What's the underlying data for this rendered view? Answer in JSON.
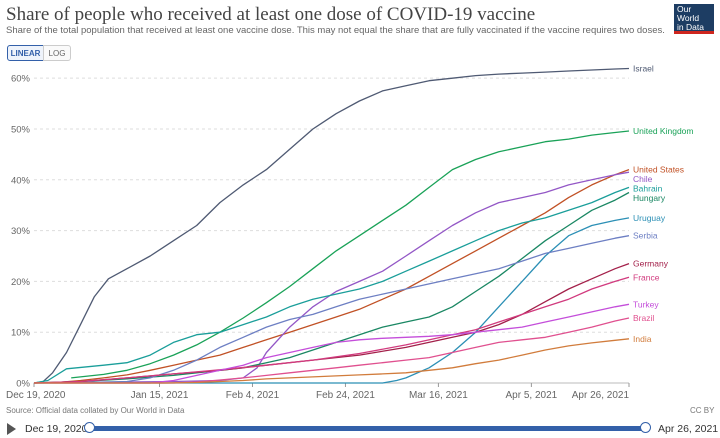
{
  "header": {
    "title": "Share of people who received at least one dose of COVID-19 vaccine",
    "subtitle": "Share of the total population that received at least one vaccine dose. This may not equal the share that are fully vaccinated if the vaccine requires two doses.",
    "logo_line1": "Our World",
    "logo_line2": "in Data"
  },
  "controls": {
    "linear_label": "LINEAR",
    "log_label": "LOG"
  },
  "footer": {
    "source": "Source: Official data collated by Our World in Data",
    "license": "CC BY"
  },
  "timeline": {
    "start_label": "Dec 19, 2020",
    "end_label": "Apr 26, 2021"
  },
  "chart_data": {
    "type": "line",
    "title": "Share of people who received at least one dose of COVID-19 vaccine",
    "subtitle": "Share of the total population that received at least one vaccine dose. This may not equal the share that are fully vaccinated if the vaccine requires two doses.",
    "xlabel": "",
    "ylabel": "",
    "ylim": [
      0,
      62
    ],
    "yticks": [
      0,
      10,
      20,
      30,
      40,
      50,
      60
    ],
    "ytick_labels": [
      "0%",
      "10%",
      "20%",
      "30%",
      "40%",
      "50%",
      "60%"
    ],
    "xticks": [
      0,
      27,
      47,
      67,
      87,
      107,
      128
    ],
    "xtick_labels": [
      "Dec 19, 2020",
      "Jan 15, 2021",
      "Feb 4, 2021",
      "Feb 24, 2021",
      "Mar 16, 2021",
      "Apr 5, 2021",
      "Apr 26, 2021"
    ],
    "x_unit": "days since Dec 19, 2020",
    "grid": true,
    "legend": "right (line end labels)",
    "series": [
      {
        "name": "Israel",
        "color": "#4f5a73",
        "x": [
          0,
          2,
          4,
          7,
          10,
          13,
          16,
          20,
          25,
          30,
          35,
          40,
          45,
          50,
          55,
          60,
          65,
          70,
          75,
          80,
          85,
          90,
          95,
          100,
          105,
          110,
          115,
          120,
          125,
          128
        ],
        "values": [
          0,
          0.3,
          2,
          6,
          11.5,
          17,
          20.5,
          22.5,
          25,
          28,
          31,
          35.5,
          39,
          42,
          46,
          50,
          53,
          55.5,
          57.5,
          58.5,
          59.5,
          60,
          60.5,
          60.8,
          61,
          61.2,
          61.4,
          61.6,
          61.8,
          61.9
        ]
      },
      {
        "name": "United Kingdom",
        "color": "#1aa258",
        "x": [
          8,
          15,
          20,
          25,
          30,
          35,
          40,
          45,
          50,
          55,
          60,
          65,
          70,
          75,
          80,
          85,
          90,
          95,
          100,
          105,
          110,
          115,
          120,
          125,
          128
        ],
        "values": [
          1,
          1.7,
          2.5,
          3.8,
          5.5,
          7.5,
          10,
          12.8,
          15.8,
          19,
          22.5,
          26,
          29,
          32,
          35,
          38.5,
          42,
          44,
          45.5,
          46.5,
          47.5,
          48,
          48.8,
          49.3,
          49.6
        ]
      },
      {
        "name": "United States",
        "color": "#c15125",
        "x": [
          0,
          5,
          10,
          15,
          20,
          25,
          30,
          35,
          40,
          45,
          50,
          55,
          60,
          65,
          70,
          75,
          80,
          85,
          90,
          95,
          100,
          105,
          110,
          115,
          120,
          125,
          128
        ],
        "values": [
          0,
          0.1,
          0.5,
          1,
          1.6,
          2.5,
          3.5,
          4.5,
          5.5,
          7,
          8.5,
          10,
          11.5,
          13,
          14.5,
          16.5,
          18.5,
          21,
          23.5,
          26,
          28.5,
          31,
          33.5,
          36.5,
          39,
          41,
          42
        ]
      },
      {
        "name": "Chile",
        "color": "#9357c6",
        "x": [
          0,
          10,
          20,
          30,
          40,
          45,
          48,
          50,
          55,
          60,
          65,
          70,
          75,
          80,
          85,
          90,
          95,
          100,
          105,
          110,
          115,
          120,
          125,
          128
        ],
        "values": [
          0,
          0.1,
          0.2,
          0.3,
          0.5,
          1,
          3,
          6,
          11,
          15,
          18,
          20,
          22,
          25,
          28,
          31,
          33.5,
          35.5,
          36.5,
          37.5,
          39,
          40,
          41,
          41.5
        ]
      },
      {
        "name": "Bahrain",
        "color": "#1a9e9a",
        "x": [
          0,
          3,
          7,
          15,
          20,
          25,
          30,
          35,
          40,
          45,
          50,
          55,
          60,
          65,
          70,
          75,
          80,
          85,
          90,
          95,
          100,
          105,
          110,
          115,
          120,
          125,
          128
        ],
        "values": [
          0,
          0.5,
          2.8,
          3.5,
          4,
          5.5,
          8,
          9.5,
          10,
          11.5,
          13,
          15,
          16.5,
          17.5,
          18.5,
          20,
          22,
          24,
          26,
          28,
          30,
          31.5,
          32.5,
          34,
          35.5,
          37.5,
          38.5
        ]
      },
      {
        "name": "Hungary",
        "color": "#1a8763",
        "x": [
          0,
          10,
          20,
          30,
          40,
          45,
          50,
          55,
          60,
          65,
          70,
          75,
          80,
          85,
          90,
          95,
          100,
          105,
          110,
          115,
          120,
          125,
          128
        ],
        "values": [
          0,
          0.3,
          0.8,
          1.5,
          2.5,
          3,
          4,
          5,
          6.5,
          8,
          9.5,
          11,
          12,
          13,
          15,
          18,
          21,
          24.5,
          28,
          31,
          34,
          36,
          37.5
        ]
      },
      {
        "name": "Uruguay",
        "color": "#2b8fb5",
        "x": [
          0,
          70,
          75,
          78,
          80,
          85,
          90,
          95,
          100,
          105,
          110,
          115,
          120,
          125,
          128
        ],
        "values": [
          0,
          0,
          0,
          0.5,
          1,
          3,
          6,
          10,
          15,
          20,
          25,
          29,
          31,
          32,
          32.5
        ]
      },
      {
        "name": "Serbia",
        "color": "#6d7fc3",
        "x": [
          0,
          10,
          20,
          25,
          30,
          35,
          40,
          45,
          50,
          55,
          60,
          65,
          70,
          75,
          80,
          85,
          90,
          95,
          100,
          105,
          110,
          115,
          120,
          125,
          128
        ],
        "values": [
          0,
          0.1,
          0.3,
          1,
          2.5,
          4.5,
          7,
          9,
          11,
          12.5,
          13.5,
          15,
          16.5,
          17.5,
          18.5,
          19.5,
          20.5,
          21.5,
          22.5,
          24,
          25.5,
          26.5,
          27.5,
          28.5,
          29
        ]
      },
      {
        "name": "Germany",
        "color": "#a3204a",
        "x": [
          0,
          10,
          20,
          30,
          40,
          50,
          60,
          70,
          80,
          90,
          95,
          100,
          105,
          110,
          115,
          120,
          125,
          128
        ],
        "values": [
          0,
          0.3,
          1,
          1.8,
          2.5,
          3.5,
          4.5,
          5.5,
          7,
          9,
          10,
          11.5,
          13.5,
          16,
          18.5,
          20.5,
          22.5,
          23.5
        ]
      },
      {
        "name": "France",
        "color": "#d13a7e",
        "x": [
          0,
          10,
          20,
          30,
          40,
          50,
          60,
          70,
          80,
          90,
          95,
          100,
          105,
          110,
          115,
          120,
          125,
          128
        ],
        "values": [
          0,
          0.3,
          1,
          1.8,
          2.6,
          3.5,
          4.5,
          5.8,
          7.5,
          9.5,
          10.5,
          12,
          13.5,
          15,
          16.5,
          18.5,
          20,
          20.8
        ]
      },
      {
        "name": "Turkey",
        "color": "#c44eda",
        "x": [
          0,
          25,
          30,
          35,
          40,
          45,
          50,
          55,
          60,
          65,
          70,
          75,
          80,
          85,
          90,
          95,
          100,
          105,
          110,
          115,
          120,
          125,
          128
        ],
        "values": [
          0,
          0,
          0.5,
          1.5,
          2.5,
          3.5,
          5,
          6,
          7,
          8,
          8.5,
          8.8,
          9,
          9.2,
          9.5,
          10,
          10.5,
          11,
          12,
          13,
          14,
          15,
          15.5
        ]
      },
      {
        "name": "Brazil",
        "color": "#e0508f",
        "x": [
          0,
          30,
          35,
          40,
          45,
          50,
          55,
          60,
          65,
          70,
          75,
          80,
          85,
          90,
          95,
          100,
          105,
          110,
          115,
          120,
          125,
          128
        ],
        "values": [
          0,
          0,
          0.2,
          0.6,
          1,
          1.5,
          2,
          2.5,
          3,
          3.5,
          4,
          4.5,
          5,
          6,
          7,
          8,
          8.5,
          9,
          10,
          11,
          12.2,
          12.8
        ]
      },
      {
        "name": "India",
        "color": "#d17c3c",
        "x": [
          0,
          28,
          35,
          40,
          45,
          50,
          55,
          60,
          65,
          70,
          75,
          80,
          85,
          90,
          95,
          100,
          105,
          110,
          115,
          120,
          125,
          128
        ],
        "values": [
          0,
          0,
          0.1,
          0.3,
          0.5,
          0.8,
          1,
          1.2,
          1.4,
          1.6,
          1.8,
          2,
          2.5,
          3,
          3.8,
          4.5,
          5.5,
          6.5,
          7.3,
          7.9,
          8.4,
          8.7
        ]
      }
    ]
  }
}
